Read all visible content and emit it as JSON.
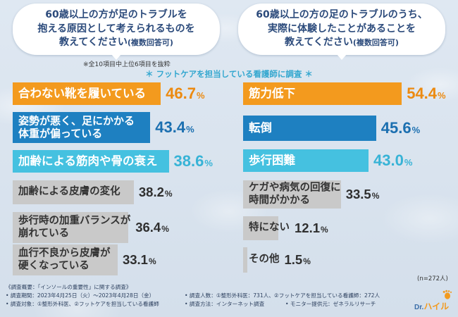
{
  "chart_data": [
    {
      "type": "bar",
      "title_lines": [
        "60歳以上の方が足のトラブルを",
        "抱える原因として考えられるものを"
      ],
      "title_last": "教えてください",
      "title_note": "(複数回答可)",
      "note": "※全10項目中上位6項目を抜粋",
      "unit": "%",
      "categories": [
        "合わない靴を履いている",
        "姿勢が悪く、足にかかる\n体重が偏っている",
        "加齢による筋肉や骨の衰え",
        "加齢による皮膚の変化",
        "歩行時の加重バランスが\n崩れている",
        "血行不良から皮膚が\n硬くなっている"
      ],
      "values": [
        46.7,
        43.4,
        38.6,
        38.2,
        36.4,
        33.1
      ],
      "value_labels": [
        "46.7",
        "43.4",
        "38.6",
        "38.2",
        "36.4",
        "33.1"
      ]
    },
    {
      "type": "bar",
      "title_lines": [
        "60歳以上の方の足のトラブルのうち、",
        "実際に体験したことがあることを"
      ],
      "title_last": "教えてください",
      "title_note": "(複数回答可)",
      "unit": "%",
      "categories": [
        "筋力低下",
        "転倒",
        "歩行困難",
        "ケガや病気の回復に\n時間がかかる",
        "特にない",
        "その他"
      ],
      "values": [
        54.4,
        45.6,
        43.0,
        33.5,
        12.1,
        1.5
      ],
      "value_labels": [
        "54.4",
        "45.6",
        "43.0",
        "33.5",
        "12.1",
        "1.5"
      ]
    }
  ],
  "subtitle": "＊ フットケアを担当している看護師に調査 ＊",
  "sample_size": "(n=272人)",
  "palette": {
    "bar": [
      "#f39a1e",
      "#1e80c1",
      "#45c1e0",
      "#c9c9c9",
      "#c9c9c9",
      "#c9c9c9"
    ],
    "label": [
      "#ffffff",
      "#ffffff",
      "#ffffff",
      "#333333",
      "#333333",
      "#333333"
    ],
    "value": [
      "#ec8a10",
      "#1b6fb0",
      "#37b3d6",
      "#2f2f2f",
      "#2f2f2f",
      "#2f2f2f"
    ]
  },
  "footer": {
    "heading": "《調査概要：「インソールの重要性」に関する調査》",
    "period": "• 調査期間：2023年4月25日（火）〜2023年4月28日（金）",
    "target": "• 調査対象：①整形外科医、②フットケアを担当している看護師",
    "count": "• 調査人数：①整形外科医：731人、②フットケアを担当している看護師：272人",
    "method": "• 調査方法：インターネット調査",
    "provider": "• モニター提供元：ゼネラルリサーチ"
  },
  "logo": {
    "prefix": "Dr.",
    "name": "ハイル"
  }
}
